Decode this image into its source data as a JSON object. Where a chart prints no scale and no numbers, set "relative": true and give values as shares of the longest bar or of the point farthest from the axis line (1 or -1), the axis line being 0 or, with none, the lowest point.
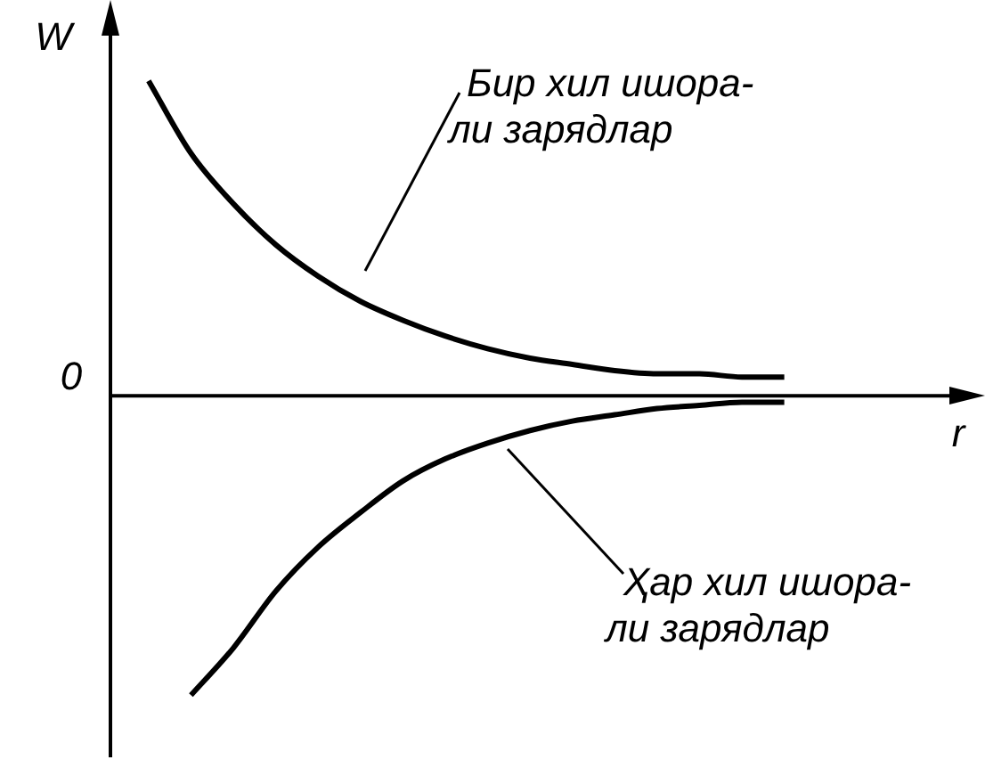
{
  "chart_data": {
    "type": "line",
    "relative": true,
    "xlabel": "r",
    "ylabel": "W",
    "categories": [
      null,
      null,
      null,
      null,
      null,
      null,
      null,
      null,
      null,
      null,
      null,
      null,
      null,
      null,
      null,
      null,
      null,
      null,
      null
    ],
    "series": [
      {
        "color": "#000000",
        "values": [
          1,
          0.77,
          0.61,
          0.48,
          0.38,
          0.3,
          0.24,
          0.19,
          0.15,
          0.12,
          0.1,
          0.08,
          0.07,
          0.07,
          0.06,
          0.06,
          null,
          null,
          null
        ]
      },
      {
        "color": "#000000",
        "values": [
          null,
          -0.95,
          -0.8,
          -0.62,
          -0.48,
          -0.37,
          -0.27,
          -0.2,
          -0.15,
          -0.11,
          -0.08,
          -0.06,
          -0.04,
          -0.03,
          -0.02,
          -0.02,
          null,
          null,
          null
        ]
      }
    ],
    "annotations": [
      "Бир хил ишора-\nли зарядлар",
      "Ҳар хил ишора-\nли зарядлар",
      "0"
    ],
    "marker": "none",
    "line_style": "solid",
    "legend": false
  }
}
